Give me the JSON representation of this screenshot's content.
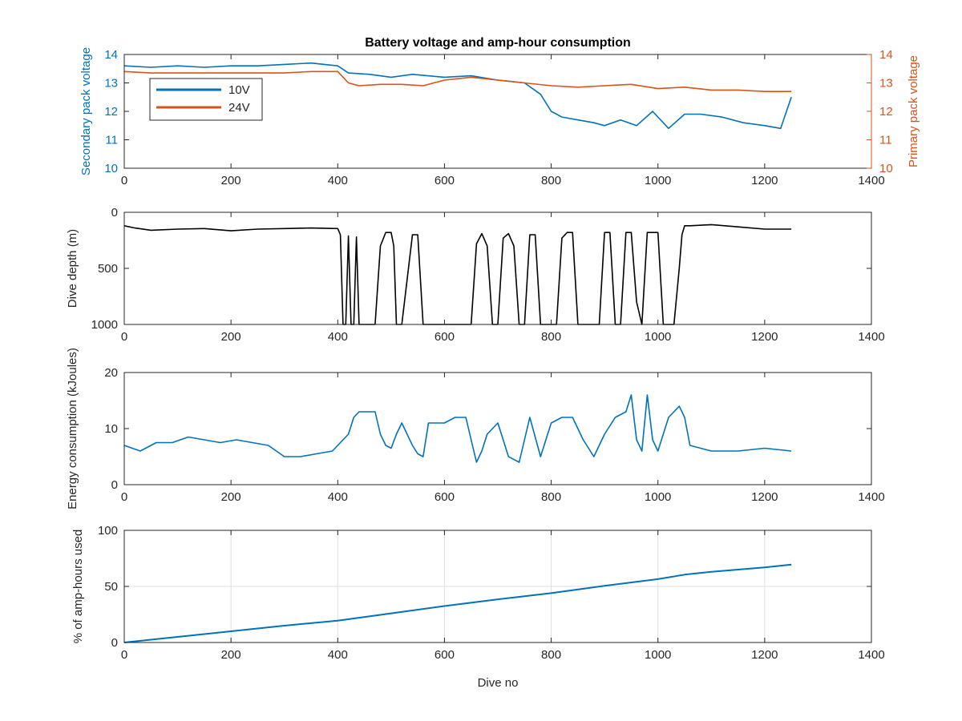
{
  "colors": {
    "blue": "#0072bd",
    "orange": "#d95319",
    "black": "#000000",
    "axis": "#262626",
    "grid": "#dfdfdf"
  },
  "chart_data": [
    {
      "type": "line",
      "title": "Battery voltage and amp-hour consumption",
      "xlabel": "",
      "ylabel": "Secondary pack voltage",
      "y2label": "Primary pack voltage",
      "xlim": [
        0,
        1400
      ],
      "ylim": [
        10,
        14
      ],
      "y2lim": [
        10,
        14
      ],
      "xticks": [
        "0",
        "200",
        "400",
        "600",
        "800",
        "1000",
        "1200",
        "1400"
      ],
      "yticks": [
        "10",
        "11",
        "12",
        "13",
        "14"
      ],
      "y2ticks": [
        "10",
        "11",
        "12",
        "13",
        "14"
      ],
      "grid": false,
      "legend_position": "top-left",
      "series": [
        {
          "name": "10V",
          "axis": "left",
          "color": "#0072bd",
          "x": [
            0,
            50,
            100,
            150,
            200,
            250,
            300,
            350,
            400,
            420,
            460,
            500,
            540,
            600,
            650,
            700,
            750,
            780,
            800,
            820,
            850,
            880,
            900,
            930,
            960,
            990,
            1020,
            1050,
            1080,
            1120,
            1160,
            1200,
            1230,
            1250
          ],
          "y": [
            13.6,
            13.55,
            13.6,
            13.55,
            13.6,
            13.6,
            13.65,
            13.7,
            13.6,
            13.35,
            13.3,
            13.2,
            13.3,
            13.2,
            13.25,
            13.1,
            13.0,
            12.6,
            12.0,
            11.8,
            11.7,
            11.6,
            11.5,
            11.7,
            11.5,
            12.0,
            11.4,
            11.9,
            11.9,
            11.8,
            11.6,
            11.5,
            11.4,
            12.5
          ]
        },
        {
          "name": "24V",
          "axis": "right",
          "color": "#d95319",
          "x": [
            0,
            50,
            100,
            150,
            200,
            250,
            300,
            350,
            400,
            420,
            440,
            480,
            520,
            560,
            600,
            650,
            700,
            750,
            800,
            850,
            900,
            950,
            1000,
            1050,
            1100,
            1150,
            1200,
            1250
          ],
          "y": [
            13.4,
            13.35,
            13.35,
            13.35,
            13.35,
            13.35,
            13.35,
            13.4,
            13.4,
            13.0,
            12.9,
            12.95,
            12.95,
            12.9,
            13.1,
            13.2,
            13.1,
            13.0,
            12.9,
            12.85,
            12.9,
            12.95,
            12.8,
            12.85,
            12.75,
            12.75,
            12.7,
            12.7
          ]
        }
      ]
    },
    {
      "type": "line",
      "xlabel": "",
      "ylabel": "Dive depth (m)",
      "xlim": [
        0,
        1400
      ],
      "ylim": [
        0,
        1000
      ],
      "y_reversed": true,
      "xticks": [
        "0",
        "200",
        "400",
        "600",
        "800",
        "1000",
        "1200",
        "1400"
      ],
      "yticks": [
        "0",
        "500",
        "1000"
      ],
      "grid": false,
      "series": [
        {
          "color": "#000000",
          "x": [
            0,
            20,
            50,
            100,
            150,
            200,
            250,
            300,
            350,
            400,
            405,
            410,
            415,
            420,
            425,
            430,
            435,
            440,
            470,
            480,
            490,
            500,
            505,
            510,
            520,
            540,
            550,
            560,
            570,
            600,
            640,
            650,
            660,
            670,
            680,
            690,
            700,
            710,
            720,
            730,
            740,
            750,
            760,
            770,
            780,
            790,
            810,
            820,
            830,
            840,
            850,
            860,
            890,
            900,
            910,
            920,
            930,
            940,
            950,
            960,
            970,
            980,
            990,
            1000,
            1010,
            1020,
            1030,
            1040,
            1045,
            1050,
            1060,
            1100,
            1150,
            1200,
            1250
          ],
          "y": [
            120,
            140,
            160,
            150,
            145,
            165,
            150,
            145,
            140,
            145,
            200,
            1000,
            1000,
            210,
            1000,
            1000,
            220,
            1000,
            1000,
            300,
            180,
            180,
            300,
            1000,
            1000,
            200,
            200,
            1000,
            1000,
            1000,
            1000,
            1000,
            280,
            190,
            300,
            1000,
            1000,
            230,
            190,
            300,
            1000,
            1000,
            200,
            200,
            1000,
            1000,
            1000,
            230,
            180,
            180,
            1000,
            1000,
            1000,
            180,
            180,
            1000,
            1000,
            180,
            180,
            800,
            1000,
            180,
            180,
            180,
            1000,
            1000,
            1000,
            500,
            200,
            120,
            120,
            110,
            130,
            150,
            150
          ]
        }
      ]
    },
    {
      "type": "line",
      "xlabel": "",
      "ylabel": "Energy consumption (kJoules)",
      "xlim": [
        0,
        1400
      ],
      "ylim": [
        0,
        20
      ],
      "xticks": [
        "0",
        "200",
        "400",
        "600",
        "800",
        "1000",
        "1200",
        "1400"
      ],
      "yticks": [
        "0",
        "10",
        "20"
      ],
      "grid": false,
      "series": [
        {
          "color": "#0072bd",
          "x": [
            0,
            30,
            60,
            90,
            120,
            150,
            180,
            210,
            240,
            270,
            300,
            330,
            360,
            390,
            410,
            420,
            430,
            440,
            470,
            480,
            490,
            500,
            510,
            520,
            540,
            550,
            560,
            570,
            600,
            620,
            640,
            650,
            660,
            670,
            680,
            690,
            700,
            720,
            740,
            760,
            780,
            800,
            820,
            840,
            860,
            880,
            900,
            920,
            940,
            950,
            960,
            970,
            980,
            990,
            1000,
            1020,
            1040,
            1050,
            1060,
            1100,
            1150,
            1200,
            1250
          ],
          "y": [
            7,
            6,
            7.5,
            7.5,
            8.5,
            8,
            7.5,
            8,
            7.5,
            7,
            5,
            5,
            5.5,
            6,
            8,
            9,
            12,
            13,
            13,
            9,
            7,
            6.5,
            9,
            11,
            7,
            5.5,
            5,
            11,
            11,
            12,
            12,
            8,
            4,
            6,
            9,
            10,
            11,
            5,
            4,
            12,
            5,
            11,
            12,
            12,
            8,
            5,
            9,
            12,
            13,
            16,
            8,
            6,
            16,
            8,
            6,
            12,
            14,
            12,
            7,
            6,
            6,
            6.5,
            6
          ]
        }
      ]
    },
    {
      "type": "line",
      "xlabel": "Dive no",
      "ylabel": "% of amp-hours used",
      "xlim": [
        0,
        1400
      ],
      "ylim": [
        0,
        100
      ],
      "xticks": [
        "0",
        "200",
        "400",
        "600",
        "800",
        "1000",
        "1200",
        "1400"
      ],
      "yticks": [
        "0",
        "50",
        "100"
      ],
      "grid": true,
      "series": [
        {
          "color": "#0072bd",
          "x": [
            0,
            100,
            200,
            300,
            400,
            500,
            600,
            700,
            800,
            900,
            1000,
            1050,
            1100,
            1200,
            1250
          ],
          "y": [
            0,
            5,
            10,
            15,
            19.5,
            26,
            32.5,
            38.5,
            44,
            50.5,
            56.5,
            60.5,
            63,
            67,
            69.5
          ]
        }
      ]
    }
  ]
}
